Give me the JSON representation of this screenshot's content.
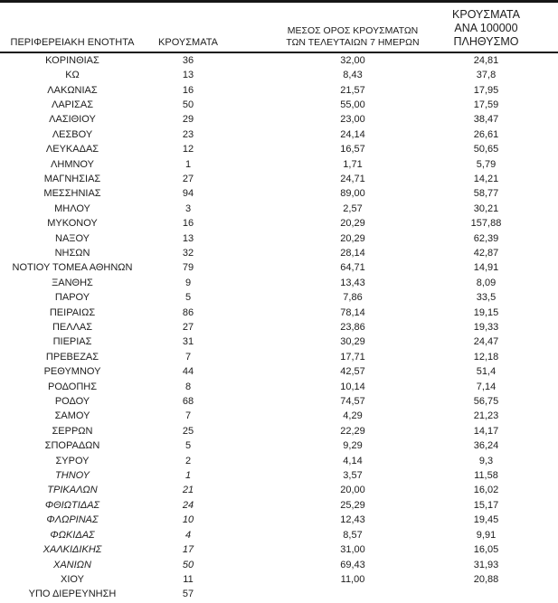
{
  "colors": {
    "background": "#ffffff",
    "text": "#1c1c1c",
    "rule": "#161616"
  },
  "table": {
    "headers": {
      "col1": "ΠΕΡΙΦΕΡΕΙΑΚΗ ΕΝΟΤΗΤΑ",
      "col2": "ΚΡΟΥΣΜΑΤΑ",
      "col3": "ΜΕΣΟΣ ΟΡΟΣ ΚΡΟΥΣΜΑΤΩΝ\nΤΩΝ ΤΕΛΕΥΤΑΙΩΝ 7 ΗΜΕΡΩΝ",
      "col4": "ΚΡΟΥΣΜΑΤΑ ΑΝΑ 100000\nΠΛΗΘΥΣΜΟ"
    },
    "rows": [
      {
        "name": "ΚΟΡΙΝΘΙΑΣ",
        "cases": "36",
        "avg7": "32,00",
        "per100k": "24,81",
        "italic": false
      },
      {
        "name": "ΚΩ",
        "cases": "13",
        "avg7": "8,43",
        "per100k": "37,8",
        "italic": false
      },
      {
        "name": "ΛΑΚΩΝΙΑΣ",
        "cases": "16",
        "avg7": "21,57",
        "per100k": "17,95",
        "italic": false
      },
      {
        "name": "ΛΑΡΙΣΑΣ",
        "cases": "50",
        "avg7": "55,00",
        "per100k": "17,59",
        "italic": false
      },
      {
        "name": "ΛΑΣΙΘΙΟΥ",
        "cases": "29",
        "avg7": "23,00",
        "per100k": "38,47",
        "italic": false
      },
      {
        "name": "ΛΕΣΒΟΥ",
        "cases": "23",
        "avg7": "24,14",
        "per100k": "26,61",
        "italic": false
      },
      {
        "name": "ΛΕΥΚΑΔΑΣ",
        "cases": "12",
        "avg7": "16,57",
        "per100k": "50,65",
        "italic": false
      },
      {
        "name": "ΛΗΜΝΟΥ",
        "cases": "1",
        "avg7": "1,71",
        "per100k": "5,79",
        "italic": false
      },
      {
        "name": "ΜΑΓΝΗΣΙΑΣ",
        "cases": "27",
        "avg7": "24,71",
        "per100k": "14,21",
        "italic": false
      },
      {
        "name": "ΜΕΣΣΗΝΙΑΣ",
        "cases": "94",
        "avg7": "89,00",
        "per100k": "58,77",
        "italic": false
      },
      {
        "name": "ΜΗΛΟΥ",
        "cases": "3",
        "avg7": "2,57",
        "per100k": "30,21",
        "italic": false
      },
      {
        "name": "ΜΥΚΟΝΟΥ",
        "cases": "16",
        "avg7": "20,29",
        "per100k": "157,88",
        "italic": false
      },
      {
        "name": "ΝΑΞΟΥ",
        "cases": "13",
        "avg7": "20,29",
        "per100k": "62,39",
        "italic": false
      },
      {
        "name": "ΝΗΣΩΝ",
        "cases": "32",
        "avg7": "28,14",
        "per100k": "42,87",
        "italic": false
      },
      {
        "name": "ΝΟΤΙΟΥ ΤΟΜΕΑ ΑΘΗΝΩΝ",
        "cases": "79",
        "avg7": "64,71",
        "per100k": "14,91",
        "italic": false
      },
      {
        "name": "ΞΑΝΘΗΣ",
        "cases": "9",
        "avg7": "13,43",
        "per100k": "8,09",
        "italic": false
      },
      {
        "name": "ΠΑΡΟΥ",
        "cases": "5",
        "avg7": "7,86",
        "per100k": "33,5",
        "italic": false
      },
      {
        "name": "ΠΕΙΡΑΙΩΣ",
        "cases": "86",
        "avg7": "78,14",
        "per100k": "19,15",
        "italic": false
      },
      {
        "name": "ΠΕΛΛΑΣ",
        "cases": "27",
        "avg7": "23,86",
        "per100k": "19,33",
        "italic": false
      },
      {
        "name": "ΠΙΕΡΙΑΣ",
        "cases": "31",
        "avg7": "30,29",
        "per100k": "24,47",
        "italic": false
      },
      {
        "name": "ΠΡΕΒΕΖΑΣ",
        "cases": "7",
        "avg7": "17,71",
        "per100k": "12,18",
        "italic": false
      },
      {
        "name": "ΡΕΘΥΜΝΟΥ",
        "cases": "44",
        "avg7": "42,57",
        "per100k": "51,4",
        "italic": false
      },
      {
        "name": "ΡΟΔΟΠΗΣ",
        "cases": "8",
        "avg7": "10,14",
        "per100k": "7,14",
        "italic": false
      },
      {
        "name": "ΡΟΔΟΥ",
        "cases": "68",
        "avg7": "74,57",
        "per100k": "56,75",
        "italic": false
      },
      {
        "name": "ΣΑΜΟΥ",
        "cases": "7",
        "avg7": "4,29",
        "per100k": "21,23",
        "italic": false
      },
      {
        "name": "ΣΕΡΡΩΝ",
        "cases": "25",
        "avg7": "22,29",
        "per100k": "14,17",
        "italic": false
      },
      {
        "name": "ΣΠΟΡΑΔΩΝ",
        "cases": "5",
        "avg7": "9,29",
        "per100k": "36,24",
        "italic": false
      },
      {
        "name": "ΣΥΡΟΥ",
        "cases": "2",
        "avg7": "4,14",
        "per100k": "9,3",
        "italic": false
      },
      {
        "name": "ΤΗΝΟΥ",
        "cases": "1",
        "avg7": "3,57",
        "per100k": "11,58",
        "italic": true
      },
      {
        "name": "ΤΡΙΚΑΛΩΝ",
        "cases": "21",
        "avg7": "20,00",
        "per100k": "16,02",
        "italic": true
      },
      {
        "name": "ΦΘΙΩΤΙΔΑΣ",
        "cases": "24",
        "avg7": "25,29",
        "per100k": "15,17",
        "italic": true
      },
      {
        "name": "ΦΛΩΡΙΝΑΣ",
        "cases": "10",
        "avg7": "12,43",
        "per100k": "19,45",
        "italic": true
      },
      {
        "name": "ΦΩΚΙΔΑΣ",
        "cases": "4",
        "avg7": "8,57",
        "per100k": "9,91",
        "italic": true
      },
      {
        "name": "ΧΑΛΚΙΔΙΚΗΣ",
        "cases": "17",
        "avg7": "31,00",
        "per100k": "16,05",
        "italic": true
      },
      {
        "name": "ΧΑΝΙΩΝ",
        "cases": "50",
        "avg7": "69,43",
        "per100k": "31,93",
        "italic": true
      },
      {
        "name": "ΧΙΟΥ",
        "cases": "11",
        "avg7": "11,00",
        "per100k": "20,88",
        "italic": false
      },
      {
        "name": "ΥΠΟ ΔΙΕΡΕΥΝΗΣΗ",
        "cases": "57",
        "avg7": "",
        "per100k": "",
        "italic": false
      }
    ]
  }
}
